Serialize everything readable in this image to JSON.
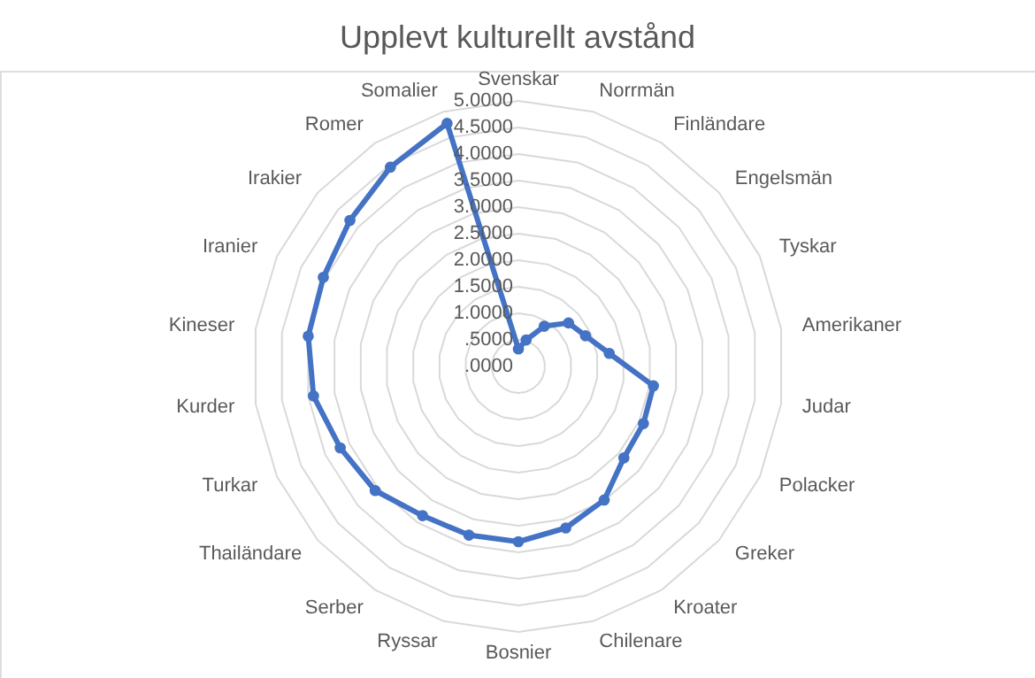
{
  "chart_data": {
    "type": "radar",
    "title": "Upplevt kulturellt avstånd",
    "categories": [
      "Svenskar",
      "Norrmän",
      "Finländare",
      "Engelsmän",
      "Tyskar",
      "Amerikaner",
      "Judar",
      "Polacker",
      "Greker",
      "Kroater",
      "Chilenare",
      "Bosnier",
      "Ryssar",
      "Serber",
      "Thailändare",
      "Turkar",
      "Kurder",
      "Kineser",
      "Iranier",
      "Irakier",
      "Romer",
      "Somalier"
    ],
    "series": [
      {
        "color": "#4472c4",
        "values": [
          0.33,
          0.52,
          0.9,
          1.25,
          1.39,
          1.73,
          2.57,
          2.59,
          2.63,
          2.99,
          3.17,
          3.3,
          3.31,
          3.34,
          3.57,
          3.69,
          3.9,
          4.0,
          4.04,
          4.2,
          4.46,
          4.77
        ]
      }
    ],
    "ylim": [
      0,
      5
    ],
    "yticks": [
      {
        "value": 0,
        "label": ".0000"
      },
      {
        "value": 0.5,
        "label": ".5000"
      },
      {
        "value": 1,
        "label": "1.0000"
      },
      {
        "value": 1.5,
        "label": "1.5000"
      },
      {
        "value": 2,
        "label": "2.0000"
      },
      {
        "value": 2.5,
        "label": "2.5000"
      },
      {
        "value": 3,
        "label": "3.0000"
      },
      {
        "value": 3.5,
        "label": "3.5000"
      },
      {
        "value": 4,
        "label": "4.0000"
      },
      {
        "value": 4.5,
        "label": "4.5000"
      },
      {
        "value": 5,
        "label": "5.0000"
      }
    ],
    "grid": true,
    "marker": "circle"
  }
}
